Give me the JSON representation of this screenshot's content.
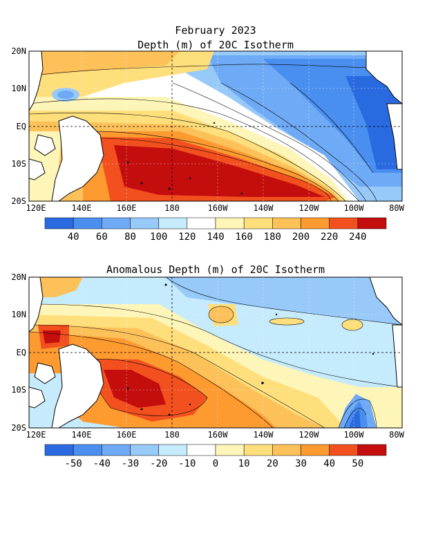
{
  "figure": {
    "title_line1": "February 2023",
    "title_line2": "Depth (m) of 20C Isotherm",
    "title_bottom": "Anomalous Depth (m) of 20C Isotherm"
  },
  "axes": {
    "lat_labels": [
      "20N",
      "10N",
      "EQ",
      "10S",
      "20S"
    ],
    "lon_labels": [
      "120E",
      "140E",
      "160E",
      "180",
      "160W",
      "140W",
      "120W",
      "100W",
      "80W"
    ]
  },
  "top_colorbar": {
    "labels": [
      "40",
      "60",
      "80",
      "100",
      "120",
      "140",
      "160",
      "180",
      "200",
      "220",
      "240"
    ],
    "colors": [
      "#2a6ae0",
      "#4a8ff0",
      "#6eaaf5",
      "#97c9f9",
      "#c5ebfc",
      "#ffffff",
      "#fef5b8",
      "#fedf7c",
      "#fdc15a",
      "#fd9a30",
      "#f3501f",
      "#c40e0e"
    ]
  },
  "bottom_colorbar": {
    "labels": [
      "-50",
      "-40",
      "-30",
      "-20",
      "-10",
      "0",
      "10",
      "20",
      "30",
      "40",
      "50"
    ],
    "colors": [
      "#2a6ae0",
      "#4a8ff0",
      "#6eaaf5",
      "#97c9f9",
      "#c5ebfc",
      "#ffffff",
      "#fef5b8",
      "#fedf7c",
      "#fdc15a",
      "#fd9a30",
      "#f3501f",
      "#c40e0e"
    ]
  }
}
